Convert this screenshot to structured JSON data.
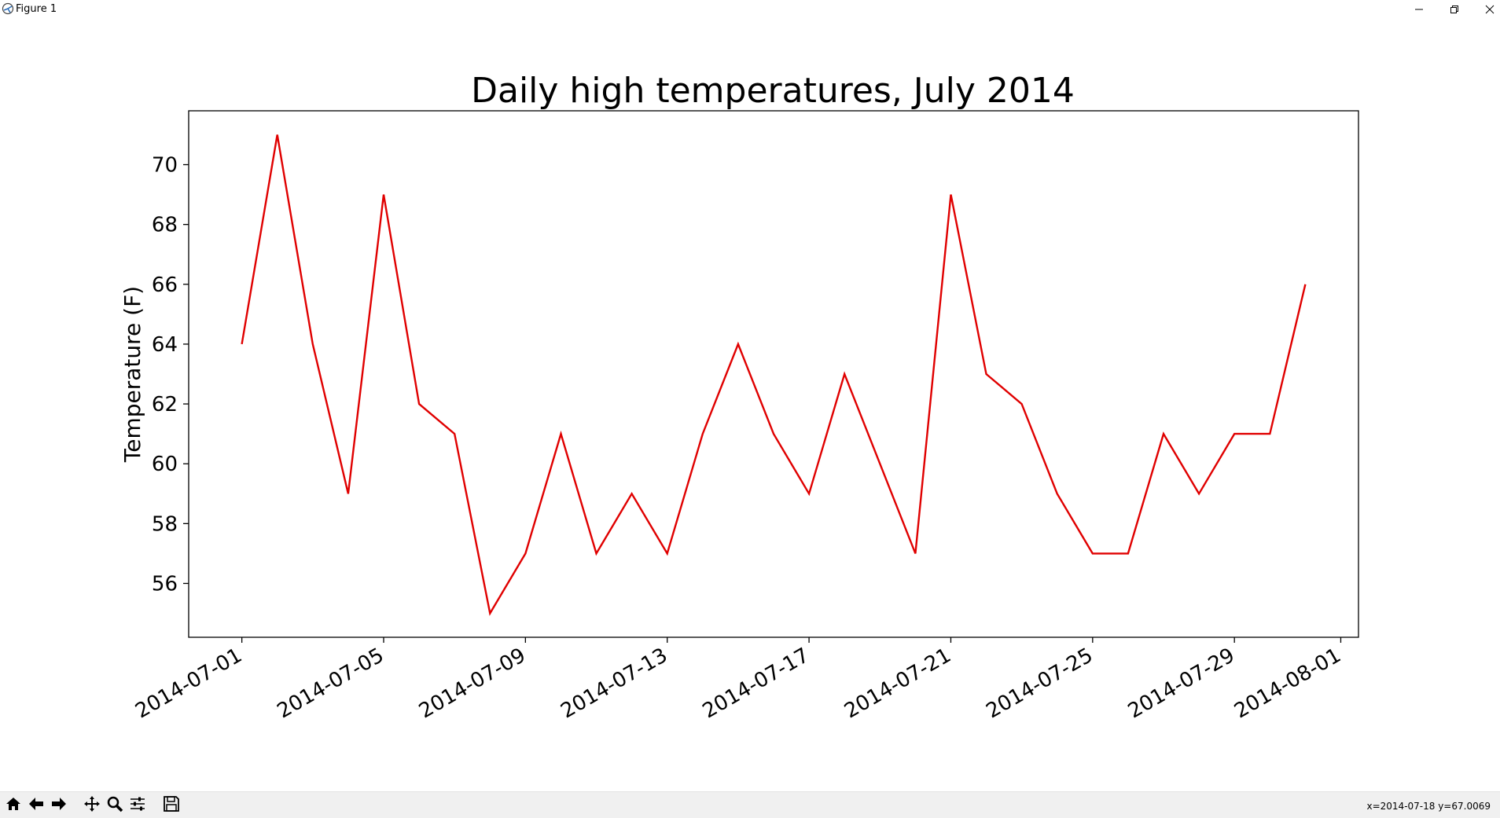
{
  "window": {
    "title": "Figure 1",
    "icons": [
      "matplotlib-icon",
      "minimize-icon",
      "restore-icon",
      "close-icon"
    ]
  },
  "toolbar": {
    "buttons": [
      {
        "name": "home",
        "icon": "home-icon"
      },
      {
        "name": "back",
        "icon": "back-arrow-icon"
      },
      {
        "name": "forward",
        "icon": "forward-arrow-icon"
      },
      {
        "name": "pan",
        "icon": "move-icon"
      },
      {
        "name": "zoom",
        "icon": "magnifier-icon"
      },
      {
        "name": "configure-subplots",
        "icon": "sliders-icon"
      },
      {
        "name": "save",
        "icon": "floppy-disk-icon"
      }
    ],
    "coords_readout": "x=2014-07-18 y=67.0069"
  },
  "chart_data": {
    "type": "line",
    "title": "Daily high temperatures, July 2014",
    "xlabel": "",
    "ylabel": "Temperature (F)",
    "x": [
      "2014-07-01",
      "2014-07-02",
      "2014-07-03",
      "2014-07-04",
      "2014-07-05",
      "2014-07-06",
      "2014-07-07",
      "2014-07-08",
      "2014-07-09",
      "2014-07-10",
      "2014-07-11",
      "2014-07-12",
      "2014-07-13",
      "2014-07-14",
      "2014-07-15",
      "2014-07-16",
      "2014-07-17",
      "2014-07-18",
      "2014-07-19",
      "2014-07-20",
      "2014-07-21",
      "2014-07-22",
      "2014-07-23",
      "2014-07-24",
      "2014-07-25",
      "2014-07-26",
      "2014-07-27",
      "2014-07-28",
      "2014-07-29",
      "2014-07-30",
      "2014-07-31"
    ],
    "series": [
      {
        "color": "#e00000",
        "values": [
          64,
          71,
          64,
          59,
          69,
          62,
          61,
          55,
          57,
          61,
          57,
          59,
          57,
          61,
          64,
          61,
          59,
          63,
          60,
          57,
          69,
          63,
          62,
          59,
          57,
          57,
          61,
          59,
          61,
          61,
          66
        ]
      }
    ],
    "x_ticks": [
      "2014-07-01",
      "2014-07-05",
      "2014-07-09",
      "2014-07-13",
      "2014-07-17",
      "2014-07-21",
      "2014-07-25",
      "2014-07-29",
      "2014-08-01"
    ],
    "xlim": [
      "2014-06-29.5",
      "2014-08-01.5"
    ],
    "y_ticks": [
      56,
      58,
      60,
      62,
      64,
      66,
      68,
      70
    ],
    "ylim": [
      54.2,
      71.8
    ],
    "grid": false,
    "legend": "none"
  }
}
